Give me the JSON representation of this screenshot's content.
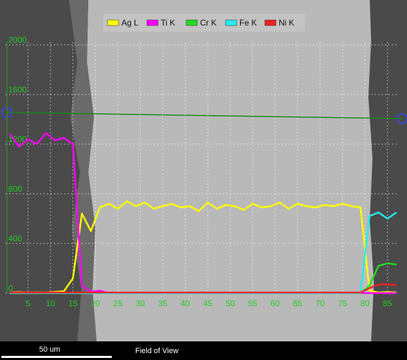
{
  "chart_data": {
    "type": "line",
    "legend": "top",
    "grid": true,
    "scale_bar_label": "50 um",
    "footer_label": "Field of View",
    "x": [
      1,
      3,
      5,
      7,
      9,
      11,
      13,
      15,
      17,
      19,
      21,
      23,
      25,
      27,
      29,
      31,
      33,
      35,
      37,
      39,
      41,
      43,
      45,
      47,
      49,
      51,
      53,
      55,
      57,
      59,
      61,
      63,
      65,
      67,
      69,
      71,
      73,
      75,
      77,
      79,
      81,
      83,
      85,
      87
    ],
    "xlim": [
      0,
      87.5
    ],
    "xticks": [
      5,
      10,
      15,
      20,
      25,
      30,
      35,
      40,
      45,
      50,
      55,
      60,
      65,
      70,
      75,
      80,
      85
    ],
    "ylim": [
      0,
      2300
    ],
    "yticks": [
      0,
      400,
      800,
      1200,
      1600,
      2000
    ],
    "series": [
      {
        "name": "Ag L",
        "color": "#ffff00",
        "values": [
          5,
          8,
          4,
          6,
          5,
          10,
          15,
          120,
          640,
          500,
          690,
          720,
          680,
          740,
          700,
          730,
          680,
          700,
          720,
          690,
          700,
          660,
          730,
          680,
          710,
          700,
          670,
          720,
          690,
          700,
          730,
          680,
          720,
          700,
          690,
          710,
          700,
          720,
          700,
          690,
          20,
          5,
          8,
          5
        ]
      },
      {
        "name": "Ti K",
        "color": "#ff00ff",
        "values": [
          1280,
          1180,
          1240,
          1200,
          1290,
          1230,
          1250,
          1200,
          60,
          10,
          20,
          0,
          0,
          0,
          0,
          0,
          0,
          0,
          0,
          0,
          0,
          0,
          0,
          0,
          0,
          0,
          0,
          0,
          0,
          0,
          0,
          0,
          0,
          0,
          0,
          0,
          0,
          0,
          0,
          0,
          0,
          0,
          0,
          0
        ]
      },
      {
        "name": "Cr K",
        "color": "#22dd22",
        "values": [
          0,
          0,
          0,
          0,
          0,
          0,
          0,
          0,
          0,
          0,
          0,
          0,
          0,
          0,
          0,
          0,
          0,
          0,
          0,
          0,
          0,
          0,
          0,
          0,
          0,
          0,
          0,
          0,
          0,
          0,
          0,
          0,
          0,
          0,
          0,
          0,
          0,
          0,
          0,
          0,
          60,
          220,
          240,
          230
        ]
      },
      {
        "name": "Fe K",
        "color": "#22eeee",
        "values": [
          0,
          0,
          0,
          0,
          0,
          0,
          0,
          0,
          0,
          0,
          0,
          0,
          0,
          0,
          0,
          0,
          0,
          0,
          0,
          0,
          0,
          0,
          0,
          0,
          0,
          0,
          0,
          0,
          0,
          0,
          0,
          0,
          0,
          0,
          0,
          0,
          0,
          0,
          0,
          0,
          620,
          650,
          600,
          650
        ]
      },
      {
        "name": "Ni K",
        "color": "#ee2222",
        "values": [
          5,
          5,
          5,
          5,
          5,
          5,
          5,
          5,
          5,
          5,
          5,
          5,
          5,
          5,
          5,
          5,
          5,
          5,
          5,
          5,
          5,
          5,
          5,
          5,
          5,
          5,
          5,
          5,
          5,
          5,
          5,
          5,
          5,
          5,
          5,
          5,
          5,
          5,
          5,
          5,
          40,
          70,
          70,
          65
        ]
      }
    ]
  }
}
